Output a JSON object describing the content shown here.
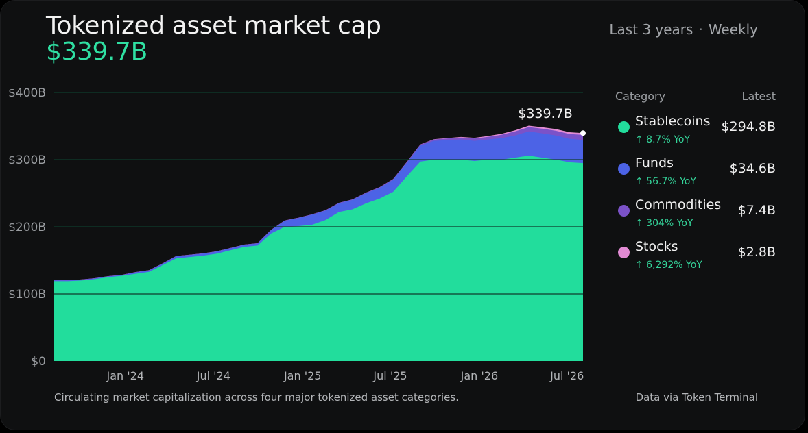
{
  "header": {
    "title": "Tokenized asset market cap",
    "total_value": "$339.7B",
    "period": "Last 3 years",
    "separator": "·",
    "interval": "Weekly"
  },
  "legend": {
    "header_category": "Category",
    "header_latest": "Latest",
    "items": [
      {
        "name": "Stablecoins",
        "yoy": "↑ 8.7% YoY",
        "latest": "$294.8B",
        "color": "#22dd9c"
      },
      {
        "name": "Funds",
        "yoy": "↑ 56.7% YoY",
        "latest": "$34.6B",
        "color": "#4c63e6"
      },
      {
        "name": "Commodities",
        "yoy": "↑ 304% YoY",
        "latest": "$7.4B",
        "color": "#7b52c8"
      },
      {
        "name": "Stocks",
        "yoy": "↑ 6,292% YoY",
        "latest": "$2.8B",
        "color": "#e28bd4"
      }
    ]
  },
  "footer": {
    "note": "Circulating market capitalization across four major tokenized asset categories.",
    "source": "Data via Token Terminal"
  },
  "chart_data": {
    "type": "area",
    "stacked": true,
    "ylim": [
      0,
      400
    ],
    "y_unit": "B",
    "ytick_values": [
      0,
      100,
      200,
      300,
      400
    ],
    "ytick_labels": [
      "$0",
      "$100B",
      "$200B",
      "$300B",
      "$400B"
    ],
    "xtick_labels": [
      "Jan '24",
      "Jul '24",
      "Jan '25",
      "Jul '25",
      "Jan '26",
      "Jul '26"
    ],
    "xtick_dates": [
      "2024-01-01",
      "2024-07-01",
      "2025-01-01",
      "2025-07-01",
      "2026-01-01",
      "2026-07-01"
    ],
    "end_annotation": "$339.7B",
    "grid": true,
    "x": [
      "2023-08-07",
      "2023-09-04",
      "2023-10-02",
      "2023-10-30",
      "2023-11-27",
      "2023-12-25",
      "2024-01-22",
      "2024-02-19",
      "2024-03-18",
      "2024-04-15",
      "2024-05-13",
      "2024-06-10",
      "2024-07-08",
      "2024-08-05",
      "2024-09-02",
      "2024-09-30",
      "2024-10-28",
      "2024-11-25",
      "2024-12-23",
      "2025-01-20",
      "2025-02-17",
      "2025-03-17",
      "2025-04-14",
      "2025-05-12",
      "2025-06-09",
      "2025-07-07",
      "2025-08-04",
      "2025-09-01",
      "2025-09-29",
      "2025-10-27",
      "2025-11-24",
      "2025-12-22",
      "2026-01-19",
      "2026-02-16",
      "2026-03-16",
      "2026-04-13",
      "2026-05-11",
      "2026-06-08",
      "2026-07-06",
      "2026-08-03"
    ],
    "series": [
      {
        "name": "Stablecoins",
        "color": "#22dd9c",
        "values": [
          119,
          119,
          120,
          122,
          125,
          127,
          130,
          133,
          143,
          153,
          155,
          157,
          160,
          165,
          170,
          172,
          190,
          200,
          201,
          203,
          210,
          222,
          226,
          235,
          242,
          252,
          275,
          297,
          300,
          300,
          300,
          298,
          300,
          300,
          303,
          306,
          303,
          300,
          296,
          294.8
        ]
      },
      {
        "name": "Funds",
        "color": "#4c63e6",
        "values": [
          1,
          1,
          1,
          1,
          1,
          1,
          2,
          2,
          2,
          3,
          3,
          3,
          3,
          3,
          3,
          3,
          5,
          9,
          12,
          15,
          14,
          13,
          14,
          15,
          16,
          18,
          20,
          24,
          28,
          29,
          30,
          30,
          30,
          32,
          33,
          36,
          36,
          36,
          35,
          34.6
        ]
      },
      {
        "name": "Commodities",
        "color": "#7b52c8",
        "values": [
          0.5,
          0.5,
          0.5,
          0.5,
          0.5,
          0.5,
          0.5,
          0.5,
          0.5,
          0.5,
          0.5,
          0.5,
          0.5,
          0.5,
          0.5,
          0.5,
          0.5,
          0.5,
          0.5,
          0.5,
          0.6,
          0.7,
          0.8,
          0.9,
          1,
          1,
          1.2,
          1.5,
          2,
          2.5,
          3,
          3.5,
          4,
          5,
          6,
          6.5,
          7,
          7,
          7.2,
          7.4
        ]
      },
      {
        "name": "Stocks",
        "color": "#e28bd4",
        "values": [
          0,
          0,
          0,
          0,
          0,
          0,
          0,
          0,
          0,
          0,
          0,
          0,
          0,
          0,
          0,
          0,
          0,
          0,
          0,
          0,
          0,
          0,
          0,
          0,
          0.1,
          0.1,
          0.2,
          0.3,
          0.4,
          0.6,
          0.8,
          1,
          1.2,
          1.5,
          1.8,
          2,
          2.3,
          2.5,
          2.6,
          2.8
        ]
      }
    ]
  }
}
